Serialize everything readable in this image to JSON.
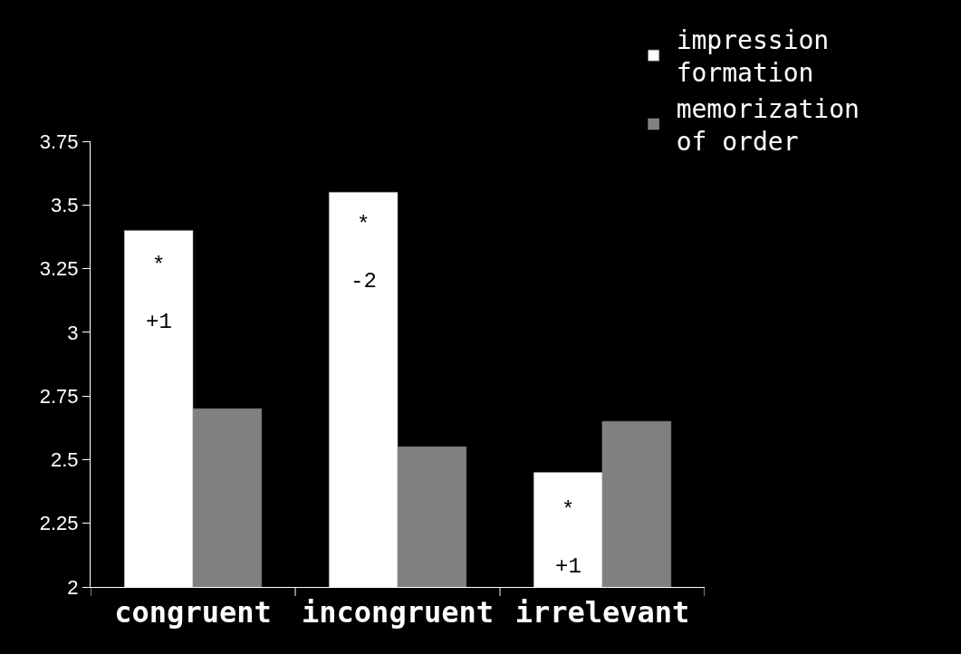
{
  "chart_data": {
    "type": "bar",
    "categories": [
      "congruent",
      "incongruent",
      "irrelevant"
    ],
    "series": [
      {
        "name": "impression\nformation",
        "color": "#ffffff",
        "values": [
          3.4,
          3.55,
          2.45
        ]
      },
      {
        "name": "memorization\nof order",
        "color": "#808080",
        "values": [
          2.7,
          2.55,
          2.65
        ]
      }
    ],
    "ylim": [
      2,
      3.75
    ],
    "yticks": [
      2,
      2.25,
      2.5,
      2.75,
      3,
      3.25,
      3.5,
      3.75
    ],
    "grid": false,
    "legend": "top right",
    "annotations": [
      {
        "text": "*",
        "x": "congruent",
        "y": 3.26
      },
      {
        "text": "+1",
        "x": "congruent",
        "y": 3.04
      },
      {
        "text": "*",
        "x": "incongruent",
        "y": 3.42
      },
      {
        "text": "-2",
        "x": "incongruent",
        "y": 3.2
      },
      {
        "text": "*",
        "x": "irrelevant",
        "y": 2.3
      },
      {
        "text": "+1",
        "x": "irrelevant",
        "y": 2.08
      }
    ]
  }
}
